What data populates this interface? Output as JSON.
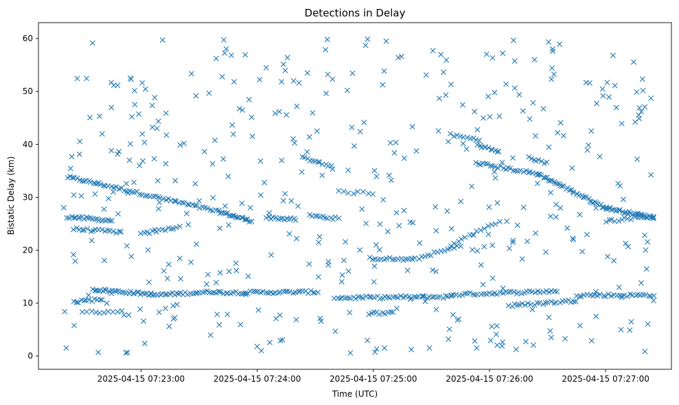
{
  "chart_data": {
    "type": "scatter",
    "title": "Detections in Delay",
    "xlabel": "Time (UTC)",
    "ylabel": "Bistatic Delay (km)",
    "marker": "x",
    "marker_color": "#1f77b4",
    "grid": false,
    "legend": "none",
    "xlim": [
      "2025-04-15 07:22:07",
      "2025-04-15 07:27:34"
    ],
    "ylim": [
      -2.5,
      63
    ],
    "x_ticks": [
      "2025-04-15 07:23:00",
      "2025-04-15 07:24:00",
      "2025-04-15 07:25:00",
      "2025-04-15 07:26:00",
      "2025-04-15 07:27:00"
    ],
    "y_ticks": [
      "0",
      "10",
      "20",
      "30",
      "40",
      "50",
      "60"
    ],
    "series": [
      {
        "tracks": [
          {
            "t": [
              "2025-04-15 07:22:22",
              "2025-04-15 07:22:40",
              "2025-04-15 07:23:00",
              "2025-04-15 07:23:20",
              "2025-04-15 07:23:40"
            ],
            "delay": [
              33.8,
              32.4,
              30.7,
              29.0,
              27.3
            ],
            "points": 60
          },
          {
            "t": [
              "2025-04-15 07:23:40",
              "2025-04-15 07:23:57"
            ],
            "delay": [
              27.3,
              25.5
            ],
            "points": 20
          },
          {
            "t": [
              "2025-04-15 07:22:22",
              "2025-04-15 07:22:45"
            ],
            "delay": [
              26.3,
              25.6
            ],
            "points": 22
          },
          {
            "t": [
              "2025-04-15 07:22:25",
              "2025-04-15 07:22:50"
            ],
            "delay": [
              24.0,
              23.4
            ],
            "points": 18
          },
          {
            "t": [
              "2025-04-15 07:23:00",
              "2025-04-15 07:23:20"
            ],
            "delay": [
              23.0,
              24.5
            ],
            "points": 14
          },
          {
            "t": [
              "2025-04-15 07:24:05",
              "2025-04-15 07:24:20"
            ],
            "delay": [
              26.2,
              25.8
            ],
            "points": 14
          },
          {
            "t": [
              "2025-04-15 07:24:27",
              "2025-04-15 07:24:42"
            ],
            "delay": [
              26.5,
              26.0
            ],
            "points": 12
          },
          {
            "t": [
              "2025-04-15 07:24:23",
              "2025-04-15 07:24:38"
            ],
            "delay": [
              37.5,
              36.0
            ],
            "points": 12
          },
          {
            "t": [
              "2025-04-15 07:24:42",
              "2025-04-15 07:25:00"
            ],
            "delay": [
              31.0,
              30.8
            ],
            "points": 8
          },
          {
            "t": [
              "2025-04-15 07:22:35",
              "2025-04-15 07:23:05"
            ],
            "delay": [
              12.6,
              11.7
            ],
            "points": 30
          },
          {
            "t": [
              "2025-04-15 07:23:05",
              "2025-04-15 07:23:40"
            ],
            "delay": [
              11.5,
              12.2
            ],
            "points": 30
          },
          {
            "t": [
              "2025-04-15 07:23:40",
              "2025-04-15 07:24:30"
            ],
            "delay": [
              12.0,
              12.1
            ],
            "points": 40
          },
          {
            "t": [
              "2025-04-15 07:24:40",
              "2025-04-15 07:25:40"
            ],
            "delay": [
              11.0,
              11.2
            ],
            "points": 45
          },
          {
            "t": [
              "2025-04-15 07:25:40",
              "2025-04-15 07:26:35"
            ],
            "delay": [
              11.6,
              12.3
            ],
            "points": 40
          },
          {
            "t": [
              "2025-04-15 07:26:10",
              "2025-04-15 07:26:45"
            ],
            "delay": [
              9.5,
              10.5
            ],
            "points": 25
          },
          {
            "t": [
              "2025-04-15 07:26:45",
              "2025-04-15 07:27:25"
            ],
            "delay": [
              11.5,
              11.5
            ],
            "points": 30
          },
          {
            "t": [
              "2025-04-15 07:22:25",
              "2025-04-15 07:22:40"
            ],
            "delay": [
              10.2,
              10.8
            ],
            "points": 12
          },
          {
            "t": [
              "2025-04-15 07:22:30",
              "2025-04-15 07:22:50"
            ],
            "delay": [
              8.2,
              8.5
            ],
            "points": 10
          },
          {
            "t": [
              "2025-04-15 07:24:58",
              "2025-04-15 07:25:10"
            ],
            "delay": [
              8.1,
              8.1
            ],
            "points": 10
          },
          {
            "t": [
              "2025-04-15 07:24:58",
              "2025-04-15 07:25:20"
            ],
            "delay": [
              18.5,
              18.2
            ],
            "points": 16
          },
          {
            "t": [
              "2025-04-15 07:25:20",
              "2025-04-15 07:25:45"
            ],
            "delay": [
              18.2,
              20.8
            ],
            "points": 16
          },
          {
            "t": [
              "2025-04-15 07:25:40",
              "2025-04-15 07:26:05"
            ],
            "delay": [
              21.0,
              25.5
            ],
            "points": 14
          },
          {
            "t": [
              "2025-04-15 07:25:40",
              "2025-04-15 07:25:55"
            ],
            "delay": [
              41.8,
              40.8
            ],
            "points": 10
          },
          {
            "t": [
              "2025-04-15 07:25:55",
              "2025-04-15 07:26:05"
            ],
            "delay": [
              39.8,
              38.5
            ],
            "points": 10
          },
          {
            "t": [
              "2025-04-15 07:25:53",
              "2025-04-15 07:26:25"
            ],
            "delay": [
              36.5,
              34.4
            ],
            "points": 26
          },
          {
            "t": [
              "2025-04-15 07:26:25",
              "2025-04-15 07:27:00"
            ],
            "delay": [
              34.4,
              28.0
            ],
            "points": 40
          },
          {
            "t": [
              "2025-04-15 07:27:00",
              "2025-04-15 07:27:25"
            ],
            "delay": [
              28.0,
              26.1
            ],
            "points": 30
          },
          {
            "t": [
              "2025-04-15 07:26:20",
              "2025-04-15 07:26:30"
            ],
            "delay": [
              37.5,
              36.5
            ],
            "points": 8
          },
          {
            "t": [
              "2025-04-15 07:27:00",
              "2025-04-15 07:27:25"
            ],
            "delay": [
              25.5,
              26.5
            ],
            "points": 16
          }
        ],
        "background": {
          "t_range": [
            "2025-04-15 07:22:20",
            "2025-04-15 07:27:25"
          ],
          "delay_range": [
            0.5,
            60
          ],
          "points": 430,
          "distribution": "approximately uniform"
        }
      }
    ]
  }
}
